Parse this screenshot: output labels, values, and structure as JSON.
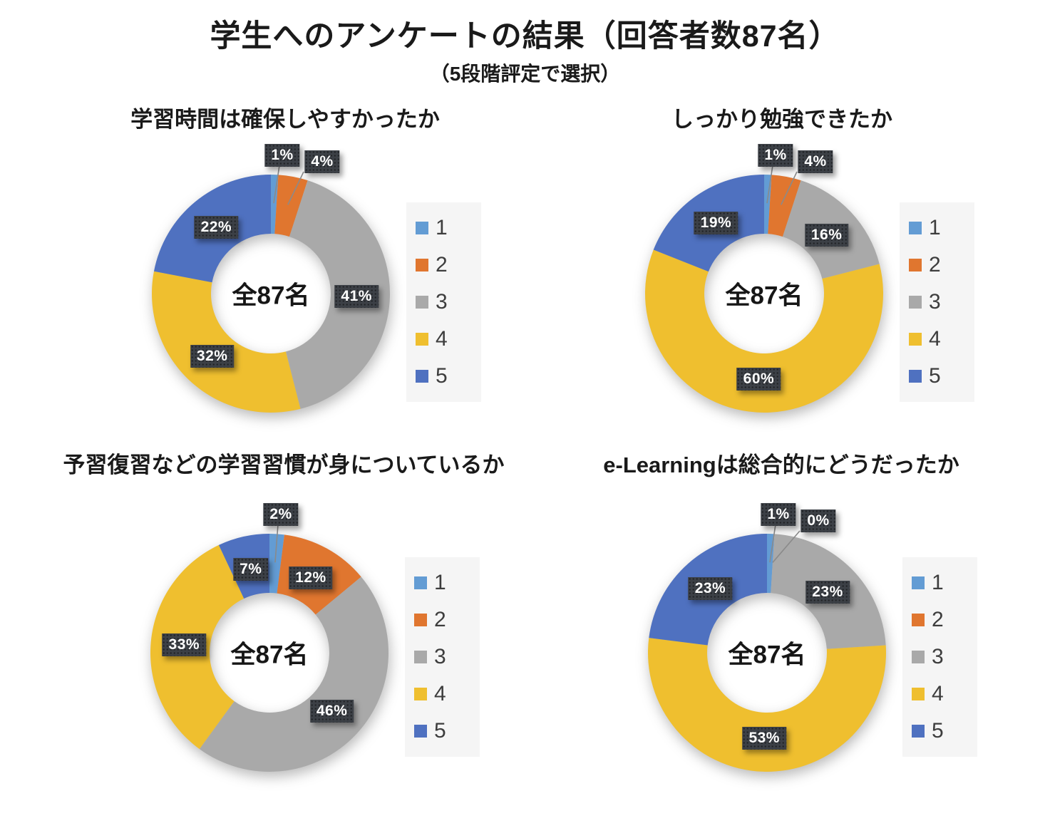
{
  "page": {
    "title": "学生へのアンケートの結果（回答者数87名）",
    "subtitle": "（5段階評定で選択）"
  },
  "palette": {
    "series_colors": [
      "#639CD4",
      "#E0762F",
      "#A9A9A9",
      "#EFBF2F",
      "#4F71C0"
    ],
    "label_box": "#3c4046",
    "label_text": "#ffffff",
    "leader_line": "#8a8a8a",
    "legend_bg": "#F5F5F5"
  },
  "chart_data": [
    {
      "type": "pie",
      "subtype": "donut",
      "title": "学習時間は確保しやすかったか",
      "categories": [
        "1",
        "2",
        "3",
        "4",
        "5"
      ],
      "values": [
        1,
        4,
        41,
        32,
        22
      ],
      "data_labels": [
        "1%",
        "4%",
        "41%",
        "32%",
        "22%"
      ],
      "unit": "%",
      "center_label": "全87名",
      "legend_position": "right"
    },
    {
      "type": "pie",
      "subtype": "donut",
      "title": "しっかり勉強できたか",
      "categories": [
        "1",
        "2",
        "3",
        "4",
        "5"
      ],
      "values": [
        1,
        4,
        16,
        60,
        19
      ],
      "data_labels": [
        "1%",
        "4%",
        "16%",
        "60%",
        "19%"
      ],
      "unit": "%",
      "center_label": "全87名",
      "legend_position": "right"
    },
    {
      "type": "pie",
      "subtype": "donut",
      "title": "予習復習などの学習習慣が身についているか",
      "categories": [
        "1",
        "2",
        "3",
        "4",
        "5"
      ],
      "values": [
        2,
        12,
        46,
        33,
        7
      ],
      "data_labels": [
        "2%",
        "12%",
        "46%",
        "33%",
        "7%"
      ],
      "unit": "%",
      "center_label": "全87名",
      "legend_position": "right"
    },
    {
      "type": "pie",
      "subtype": "donut",
      "title": "e-Learningは総合的にどうだったか",
      "categories": [
        "1",
        "2",
        "3",
        "4",
        "5"
      ],
      "values": [
        1,
        0,
        23,
        53,
        23
      ],
      "data_labels": [
        "1%",
        "0%",
        "23%",
        "53%",
        "23%"
      ],
      "unit": "%",
      "center_label": "全87名",
      "legend_position": "right"
    }
  ]
}
